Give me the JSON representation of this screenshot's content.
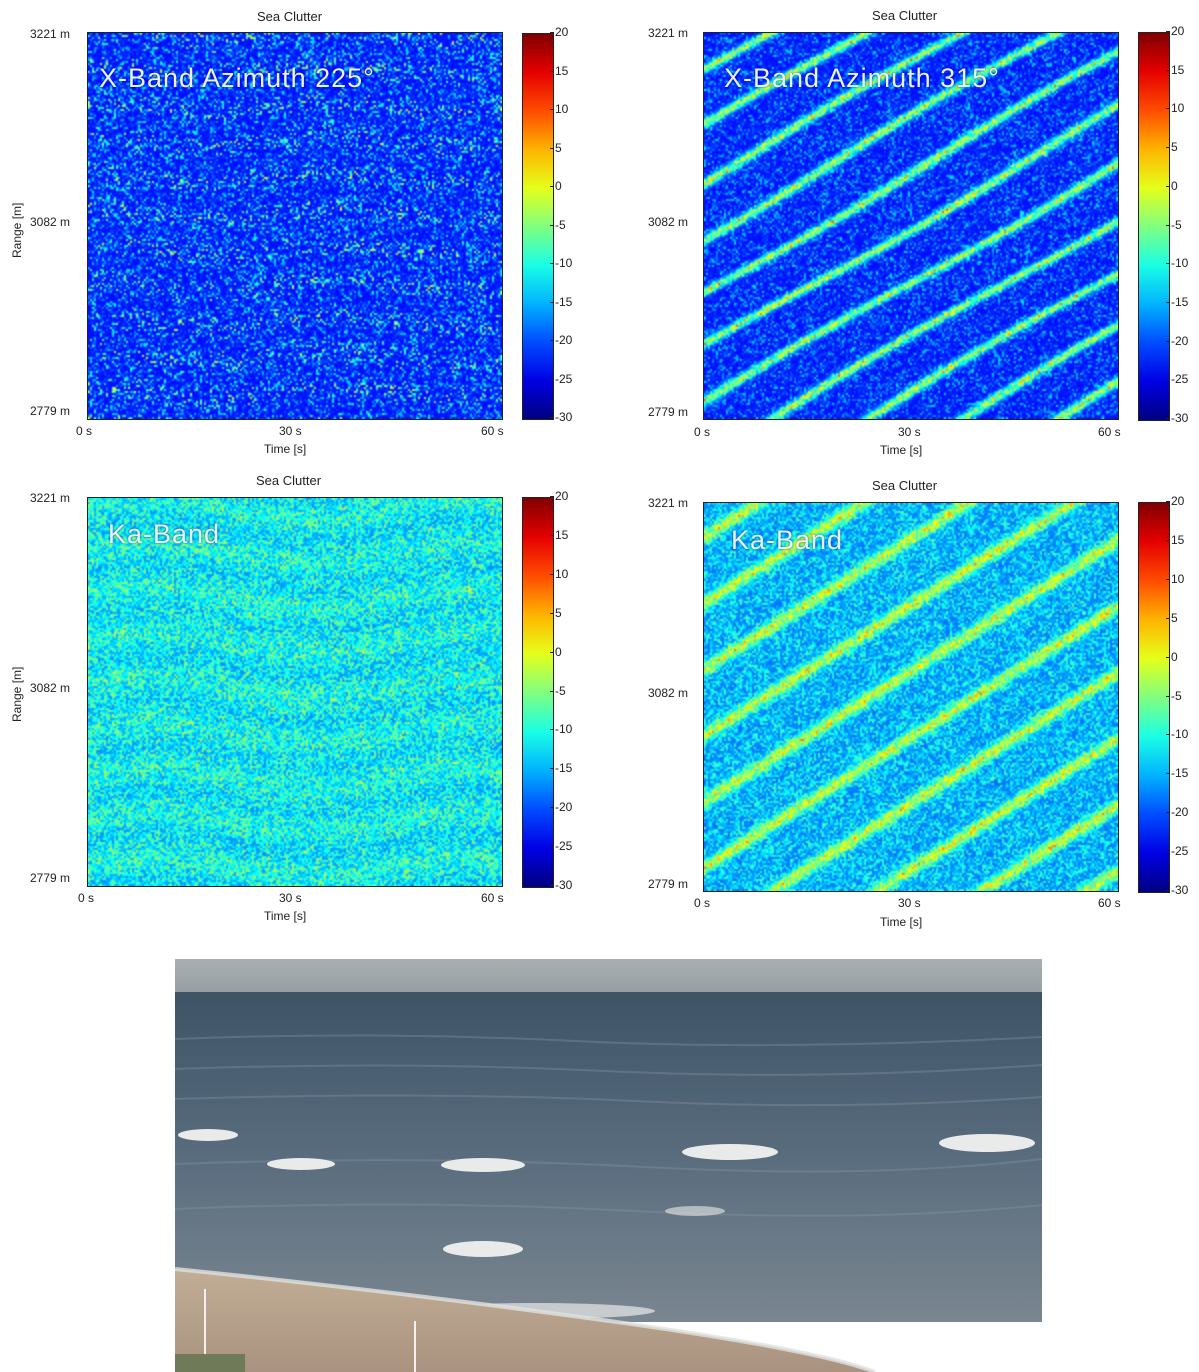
{
  "chart_data": [
    {
      "type": "heatmap",
      "title": "Sea Clutter",
      "overlay_text": "X-Band   Azimuth 225°",
      "xlabel": "Time [s]",
      "ylabel": "Range [m]",
      "xlim": [
        0,
        60
      ],
      "ylim": [
        2779,
        3221
      ],
      "x_tick_labels": [
        "0 s",
        "30 s",
        "60 s"
      ],
      "y_tick_labels": [
        "3221 m",
        "3082 m",
        "2779 m"
      ],
      "colorbar": {
        "min": -30,
        "max": 20,
        "ticks": [
          "20",
          "15",
          "10",
          "5",
          "0",
          "-5",
          "-10",
          "-15",
          "-20",
          "-25",
          "-30"
        ]
      },
      "colormap": "jet",
      "texture": "isotropic speckle, mostly -30 to -15 with sparse bright specks"
    },
    {
      "type": "heatmap",
      "title": "Sea Clutter",
      "overlay_text": "X-Band Azimuth 315°",
      "xlabel": "Time [s]",
      "ylabel": "",
      "xlim": [
        0,
        60
      ],
      "ylim": [
        2779,
        3221
      ],
      "x_tick_labels": [
        "0 s",
        "30 s",
        "60 s"
      ],
      "y_tick_labels": [
        "3221 m",
        "3082 m",
        "2779 m"
      ],
      "colorbar": {
        "min": -30,
        "max": 20,
        "ticks": [
          "20",
          "15",
          "10",
          "5",
          "0",
          "-5",
          "-10",
          "-15",
          "-20",
          "-25",
          "-30"
        ]
      },
      "colormap": "jet",
      "texture": "diagonal streaks from upper-left to lower-right"
    },
    {
      "type": "heatmap",
      "title": "Sea Clutter",
      "overlay_text": "Ka-Band",
      "xlabel": "Time [s]",
      "ylabel": "Range [m]",
      "xlim": [
        0,
        60
      ],
      "ylim": [
        2779,
        3221
      ],
      "x_tick_labels": [
        "0 s",
        "30 s",
        "60 s"
      ],
      "y_tick_labels": [
        "3221 m",
        "3082 m",
        "2779 m"
      ],
      "colorbar": {
        "min": -30,
        "max": 20,
        "ticks": [
          "20",
          "15",
          "10",
          "5",
          "0",
          "-5",
          "-10",
          "-15",
          "-20",
          "-25",
          "-30"
        ]
      },
      "colormap": "jet",
      "texture": "dense speckle with horizontal banding, mostly -20 to -5"
    },
    {
      "type": "heatmap",
      "title": "Sea Clutter",
      "overlay_text": "Ka-Band",
      "xlabel": "Time [s]",
      "ylabel": "",
      "xlim": [
        0,
        60
      ],
      "ylim": [
        2779,
        3221
      ],
      "x_tick_labels": [
        "0 s",
        "30 s",
        "60 s"
      ],
      "y_tick_labels": [
        "3221 m",
        "3082 m",
        "2779 m"
      ],
      "colorbar": {
        "min": -30,
        "max": 20,
        "ticks": [
          "20",
          "15",
          "10",
          "5",
          "0",
          "-5",
          "-10",
          "-15",
          "-20",
          "-25",
          "-30"
        ]
      },
      "colormap": "jet",
      "texture": "dense speckle with diagonal streaks upper-left to lower-right"
    }
  ],
  "photo": {
    "subject": "ocean-waves-beach-photo",
    "colors": {
      "sky": "#9aa3a6",
      "sea_far": "#4f6478",
      "sea_near": "#6f7f8c",
      "foam": "#e6e8e6",
      "sand": "#b9a58f"
    }
  }
}
